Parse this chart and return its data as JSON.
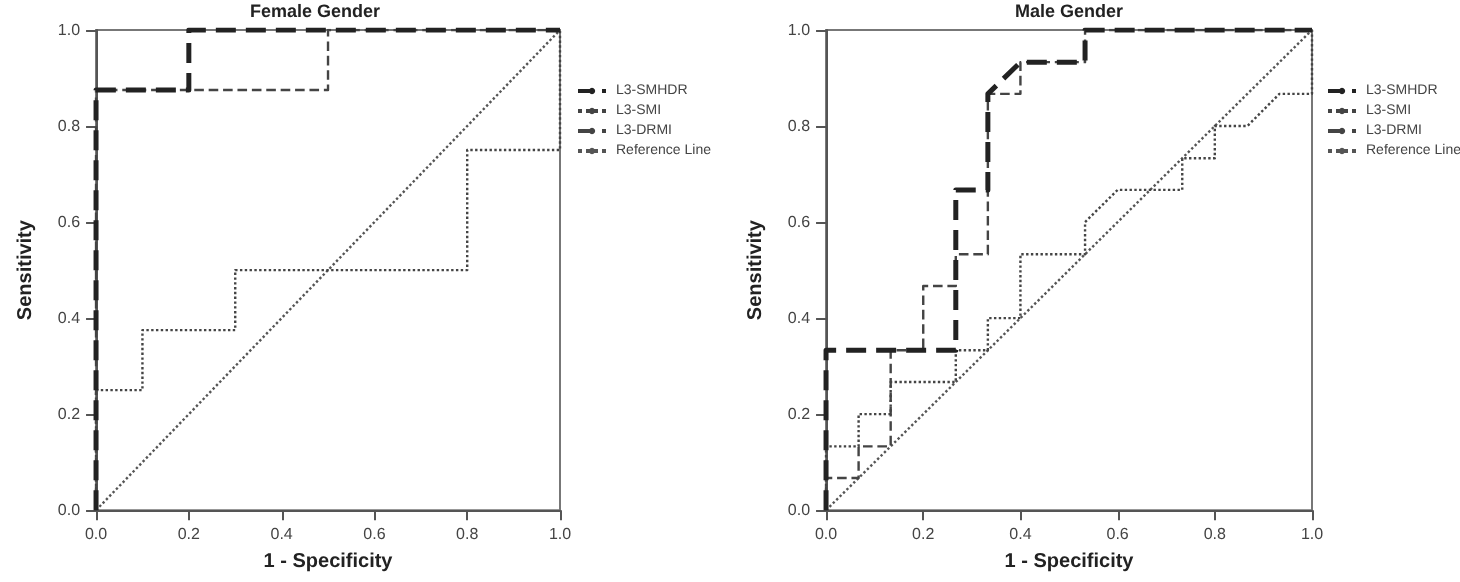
{
  "chart_data": [
    {
      "type": "line",
      "title": "Female Gender",
      "xlabel": "1 - Specificity",
      "ylabel": "Sensitivity",
      "xlim": [
        0,
        1
      ],
      "ylim": [
        0,
        1
      ],
      "xticks": [
        {
          "value": 0,
          "label": "0.0"
        },
        {
          "value": 0.2,
          "label": "0.2"
        },
        {
          "value": 0.4,
          "label": "0.4"
        },
        {
          "value": 0.6,
          "label": "0.6"
        },
        {
          "value": 0.8,
          "label": "0.8"
        },
        {
          "value": 1,
          "label": "1.0"
        }
      ],
      "yticks": [
        {
          "value": 0,
          "label": "0.0"
        },
        {
          "value": 0.2,
          "label": "0.2"
        },
        {
          "value": 0.4,
          "label": "0.4"
        },
        {
          "value": 0.6,
          "label": "0.6"
        },
        {
          "value": 0.8,
          "label": "0.8"
        },
        {
          "value": 1,
          "label": "1.0"
        }
      ],
      "grid": false,
      "legend": "right",
      "marker": "none",
      "series": [
        {
          "name": "L3-SMHDR",
          "color": "#222222",
          "line_style": "dashed",
          "x": [
            0,
            0,
            0.2,
            0.2,
            1
          ],
          "values": [
            0,
            0.875,
            0.875,
            1,
            1
          ]
        },
        {
          "name": "L3-SMI",
          "color": "#444444",
          "line_style": "dotted",
          "x": [
            0,
            0,
            0.1,
            0.1,
            0.3,
            0.3,
            0.8,
            0.8,
            1,
            1
          ],
          "values": [
            0,
            0.25,
            0.25,
            0.375,
            0.375,
            0.5,
            0.5,
            0.75,
            0.75,
            1
          ]
        },
        {
          "name": "L3-DRMI",
          "color": "#444444",
          "line_style": "dashed",
          "x": [
            0,
            0,
            0.5,
            0.5,
            1
          ],
          "values": [
            0,
            0.875,
            0.875,
            1,
            1
          ]
        },
        {
          "name": "Reference Line",
          "color": "#555555",
          "line_style": "dotted",
          "x": [
            0,
            1
          ],
          "values": [
            0,
            1
          ]
        }
      ]
    },
    {
      "type": "line",
      "title": "Male Gender",
      "xlabel": "1 - Specificity",
      "ylabel": "Sensitivity",
      "xlim": [
        0,
        1
      ],
      "ylim": [
        0,
        1
      ],
      "xticks": [
        {
          "value": 0,
          "label": "0.0"
        },
        {
          "value": 0.2,
          "label": "0.2"
        },
        {
          "value": 0.4,
          "label": "0.4"
        },
        {
          "value": 0.6,
          "label": "0.6"
        },
        {
          "value": 0.8,
          "label": "0.8"
        },
        {
          "value": 1,
          "label": "1.0"
        }
      ],
      "yticks": [
        {
          "value": 0,
          "label": "0.0"
        },
        {
          "value": 0.2,
          "label": "0.2"
        },
        {
          "value": 0.4,
          "label": "0.4"
        },
        {
          "value": 0.6,
          "label": "0.6"
        },
        {
          "value": 0.8,
          "label": "0.8"
        },
        {
          "value": 1,
          "label": "1.0"
        }
      ],
      "grid": false,
      "legend": "right",
      "marker": "none",
      "series": [
        {
          "name": "L3-SMHDR",
          "color": "#222222",
          "line_style": "dashed",
          "x": [
            0,
            0,
            0.267,
            0.267,
            0.333,
            0.333,
            0.4,
            0.533,
            0.533,
            1
          ],
          "values": [
            0,
            0.333,
            0.333,
            0.667,
            0.667,
            0.867,
            0.933,
            0.933,
            1,
            1
          ]
        },
        {
          "name": "L3-SMI",
          "color": "#444444",
          "line_style": "dotted",
          "x": [
            0,
            0,
            0.067,
            0.067,
            0.133,
            0.133,
            0.267,
            0.267,
            0.333,
            0.333,
            0.4,
            0.4,
            0.533,
            0.533,
            0.6,
            0.733,
            0.733,
            0.8,
            0.8,
            0.867,
            0.933,
            1,
            1
          ],
          "values": [
            0,
            0.133,
            0.133,
            0.2,
            0.2,
            0.267,
            0.267,
            0.333,
            0.333,
            0.4,
            0.4,
            0.533,
            0.533,
            0.6,
            0.667,
            0.667,
            0.733,
            0.733,
            0.8,
            0.8,
            0.867,
            0.867,
            1
          ]
        },
        {
          "name": "L3-DRMI",
          "color": "#444444",
          "line_style": "dashed",
          "x": [
            0,
            0,
            0.067,
            0.067,
            0.133,
            0.133,
            0.2,
            0.2,
            0.267,
            0.267,
            0.333,
            0.333,
            0.4,
            0.4,
            0.533,
            0.533,
            1
          ],
          "values": [
            0,
            0.067,
            0.067,
            0.133,
            0.133,
            0.333,
            0.333,
            0.467,
            0.467,
            0.533,
            0.533,
            0.867,
            0.867,
            0.933,
            0.933,
            1,
            1
          ]
        },
        {
          "name": "Reference Line",
          "color": "#555555",
          "line_style": "dotted",
          "x": [
            0,
            1
          ],
          "values": [
            0,
            1
          ]
        }
      ]
    }
  ]
}
